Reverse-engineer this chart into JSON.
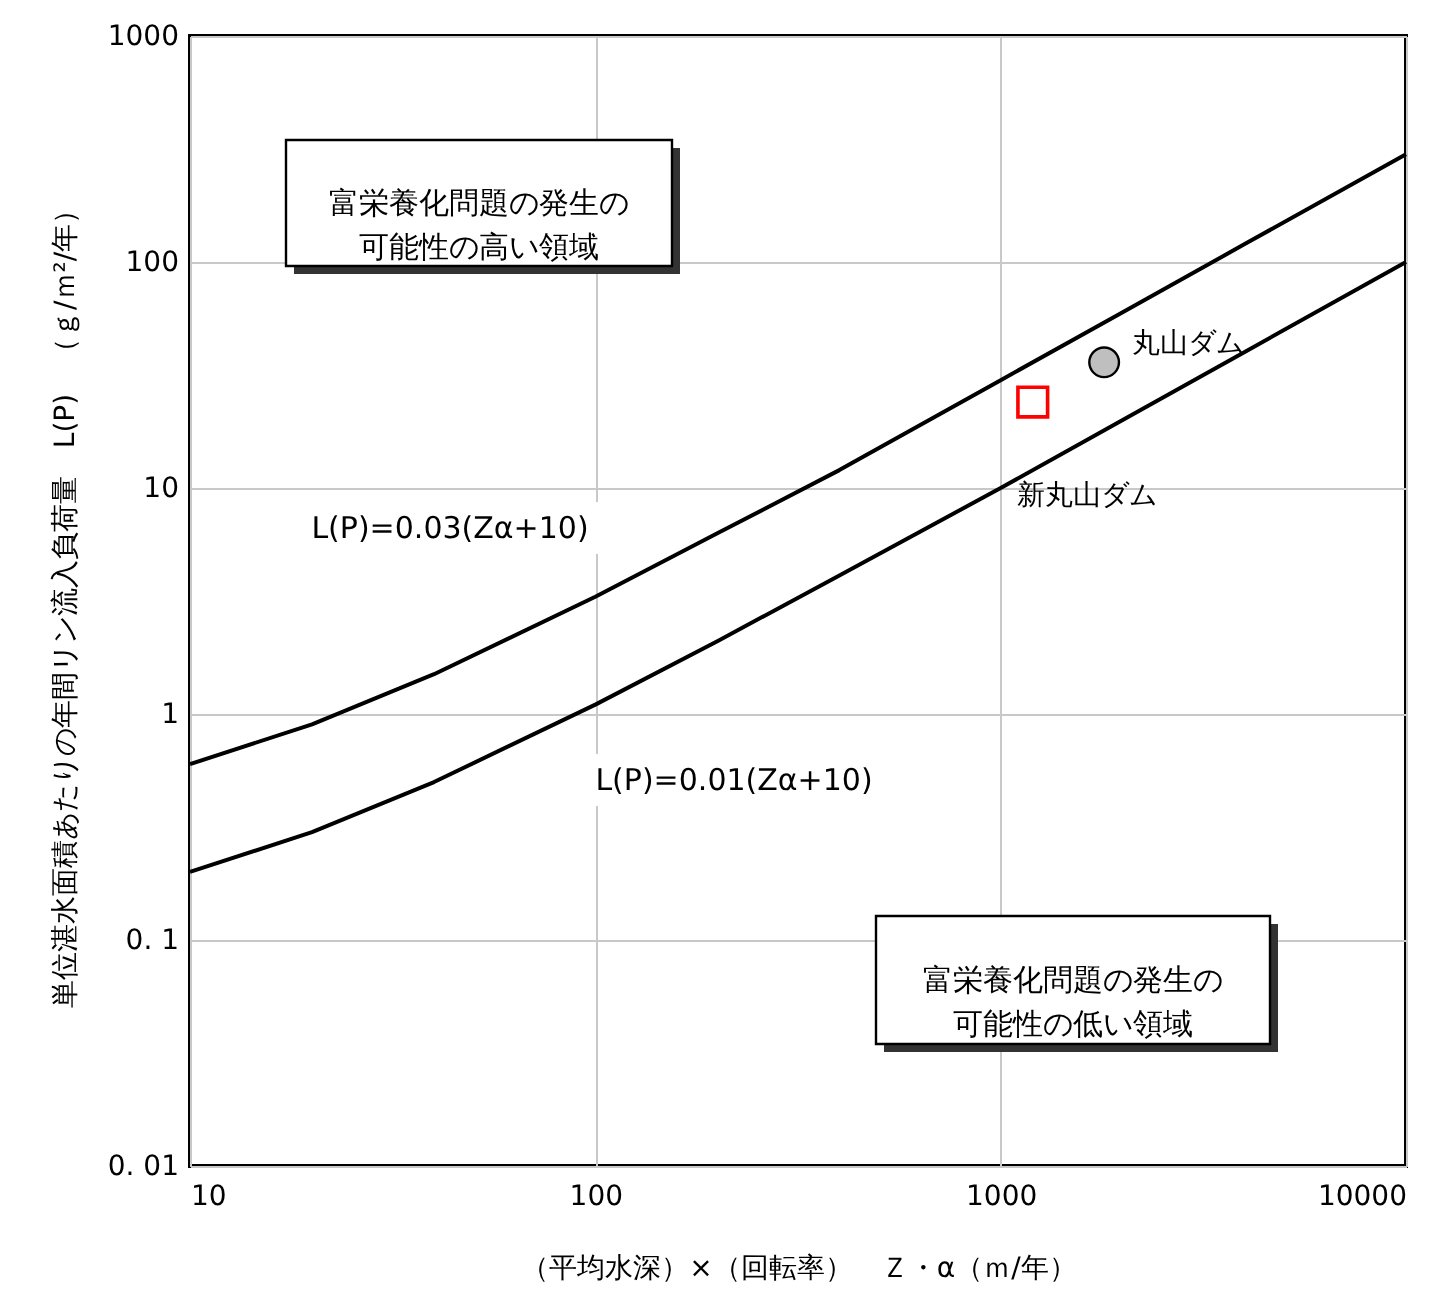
{
  "chart_data": {
    "type": "line",
    "xlabel": "（平均水深）×（回転率）　Ｚ・α（ｍ/年）",
    "ylabel": "単位湛水面積あたりの年間リン流入負荷量　L(P)　（ｇ/ｍ²/年）",
    "log": "xy",
    "grid": true,
    "xlim": [
      10,
      10000
    ],
    "xticks": [
      10,
      100,
      1000,
      10000
    ],
    "ylim": [
      0.01,
      1000
    ],
    "yticks": [
      {
        "value": 0.01,
        "label": "0. 01"
      },
      {
        "value": 0.1,
        "label": "0. 1"
      },
      1,
      10,
      100,
      1000
    ],
    "annotations": [
      "L(P)=0.03(Zα+10)",
      "L(P)=0.01(Zα+10)",
      "富栄養化問題の発生の可能性の高い領域",
      "富栄養化問題の発生の可能性の低い領域"
    ],
    "series": [
      {
        "color": "#000000",
        "marker": "none",
        "x": [
          10,
          20,
          40,
          100,
          200,
          400,
          1000,
          2000,
          4000,
          10000
        ],
        "values": [
          0.6,
          0.9,
          1.5,
          3.3,
          6.3,
          12,
          30,
          60,
          120,
          300
        ]
      },
      {
        "color": "#000000",
        "marker": "none",
        "x": [
          10,
          20,
          40,
          100,
          200,
          400,
          1000,
          2000,
          4000,
          10000
        ],
        "values": [
          0.2,
          0.3,
          0.5,
          1.1,
          2.1,
          4.1,
          10,
          20,
          40,
          100
        ]
      },
      {
        "type": "scatter",
        "name": "丸山ダム",
        "color": "#bfbfbf",
        "marker": "circle",
        "x": [
          1800
        ],
        "values": [
          36
        ]
      },
      {
        "type": "scatter",
        "name": "新丸山ダム",
        "color": "#ff0000",
        "marker": "square",
        "x": [
          1200
        ],
        "values": [
          24
        ]
      }
    ]
  }
}
